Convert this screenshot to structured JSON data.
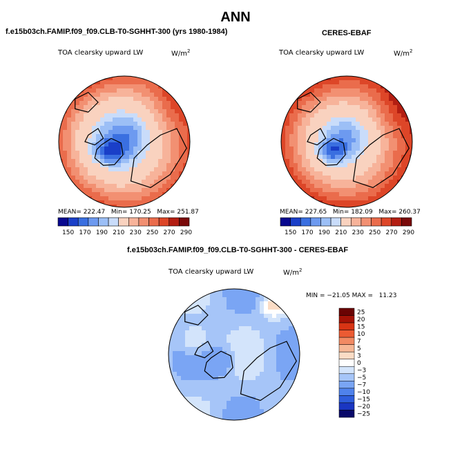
{
  "main_title": "ANN",
  "colors": {
    "abs_scale": [
      "#08088f",
      "#1a3fc8",
      "#3a6fe0",
      "#6d9af0",
      "#9cbff6",
      "#c9dcfa",
      "#f9d2bf",
      "#f7b39a",
      "#f29072",
      "#ea6c4c",
      "#dd4628",
      "#b31e12",
      "#7a0a0a"
    ],
    "diff_scale": [
      "#08086a",
      "#1a36c2",
      "#2e5ddc",
      "#4f82ec",
      "#7aa5f4",
      "#a6c5f8",
      "#d3e4fb",
      "#ffffff",
      "#fbdcc5",
      "#f6b795",
      "#f18a63",
      "#eb5b33",
      "#d83414",
      "#a51206",
      "#6a0303"
    ],
    "coast": "#000000"
  },
  "chart_data": [
    {
      "type": "heatmap",
      "projection": "north-polar-stereographic",
      "title": "f.e15b03ch.FAMIP.f09_f09.CLB-T0-SGHHT-300 (yrs 1980-1984)",
      "variable": "TOA clearsky upward LW",
      "units_base": "W/m",
      "units_exp": "2",
      "stats": {
        "mean": "222.47",
        "min": "170.25",
        "max": "251.87"
      },
      "stats_labels": {
        "mean": "MEAN=",
        "min": "Min=",
        "max": "Max="
      },
      "colorbar_ticks": [
        "150",
        "170",
        "190",
        "210",
        "230",
        "250",
        "270",
        "290"
      ],
      "range": [
        160,
        252
      ],
      "field_bias": 0
    },
    {
      "type": "heatmap",
      "projection": "north-polar-stereographic",
      "title": "CERES-EBAF",
      "variable": "TOA clearsky upward LW",
      "units_base": "W/m",
      "units_exp": "2",
      "stats": {
        "mean": "227.65",
        "min": "182.09",
        "max": "260.37"
      },
      "stats_labels": {
        "mean": "MEAN=",
        "min": "Min=",
        "max": "Max="
      },
      "colorbar_ticks": [
        "150",
        "170",
        "190",
        "210",
        "230",
        "250",
        "270",
        "290"
      ],
      "range": [
        180,
        262
      ],
      "field_bias": 8
    },
    {
      "type": "heatmap",
      "projection": "north-polar-stereographic",
      "title": "f.e15b03ch.FAMIP.f09_f09.CLB-T0-SGHHT-300 - CERES-EBAF",
      "variable": "TOA clearsky upward LW",
      "units_base": "W/m",
      "units_exp": "2",
      "stats_text": "MIN = −21.05 MAX =   11.23",
      "stats": {
        "min": "-21.05",
        "max": "11.23"
      },
      "colorbar_ticks": [
        "25",
        "20",
        "15",
        "10",
        "7",
        "5",
        "3",
        "0",
        "−3",
        "−5",
        "−7",
        "−10",
        "−15",
        "−20",
        "−25"
      ],
      "range": [
        -21.05,
        11.23
      ]
    }
  ]
}
